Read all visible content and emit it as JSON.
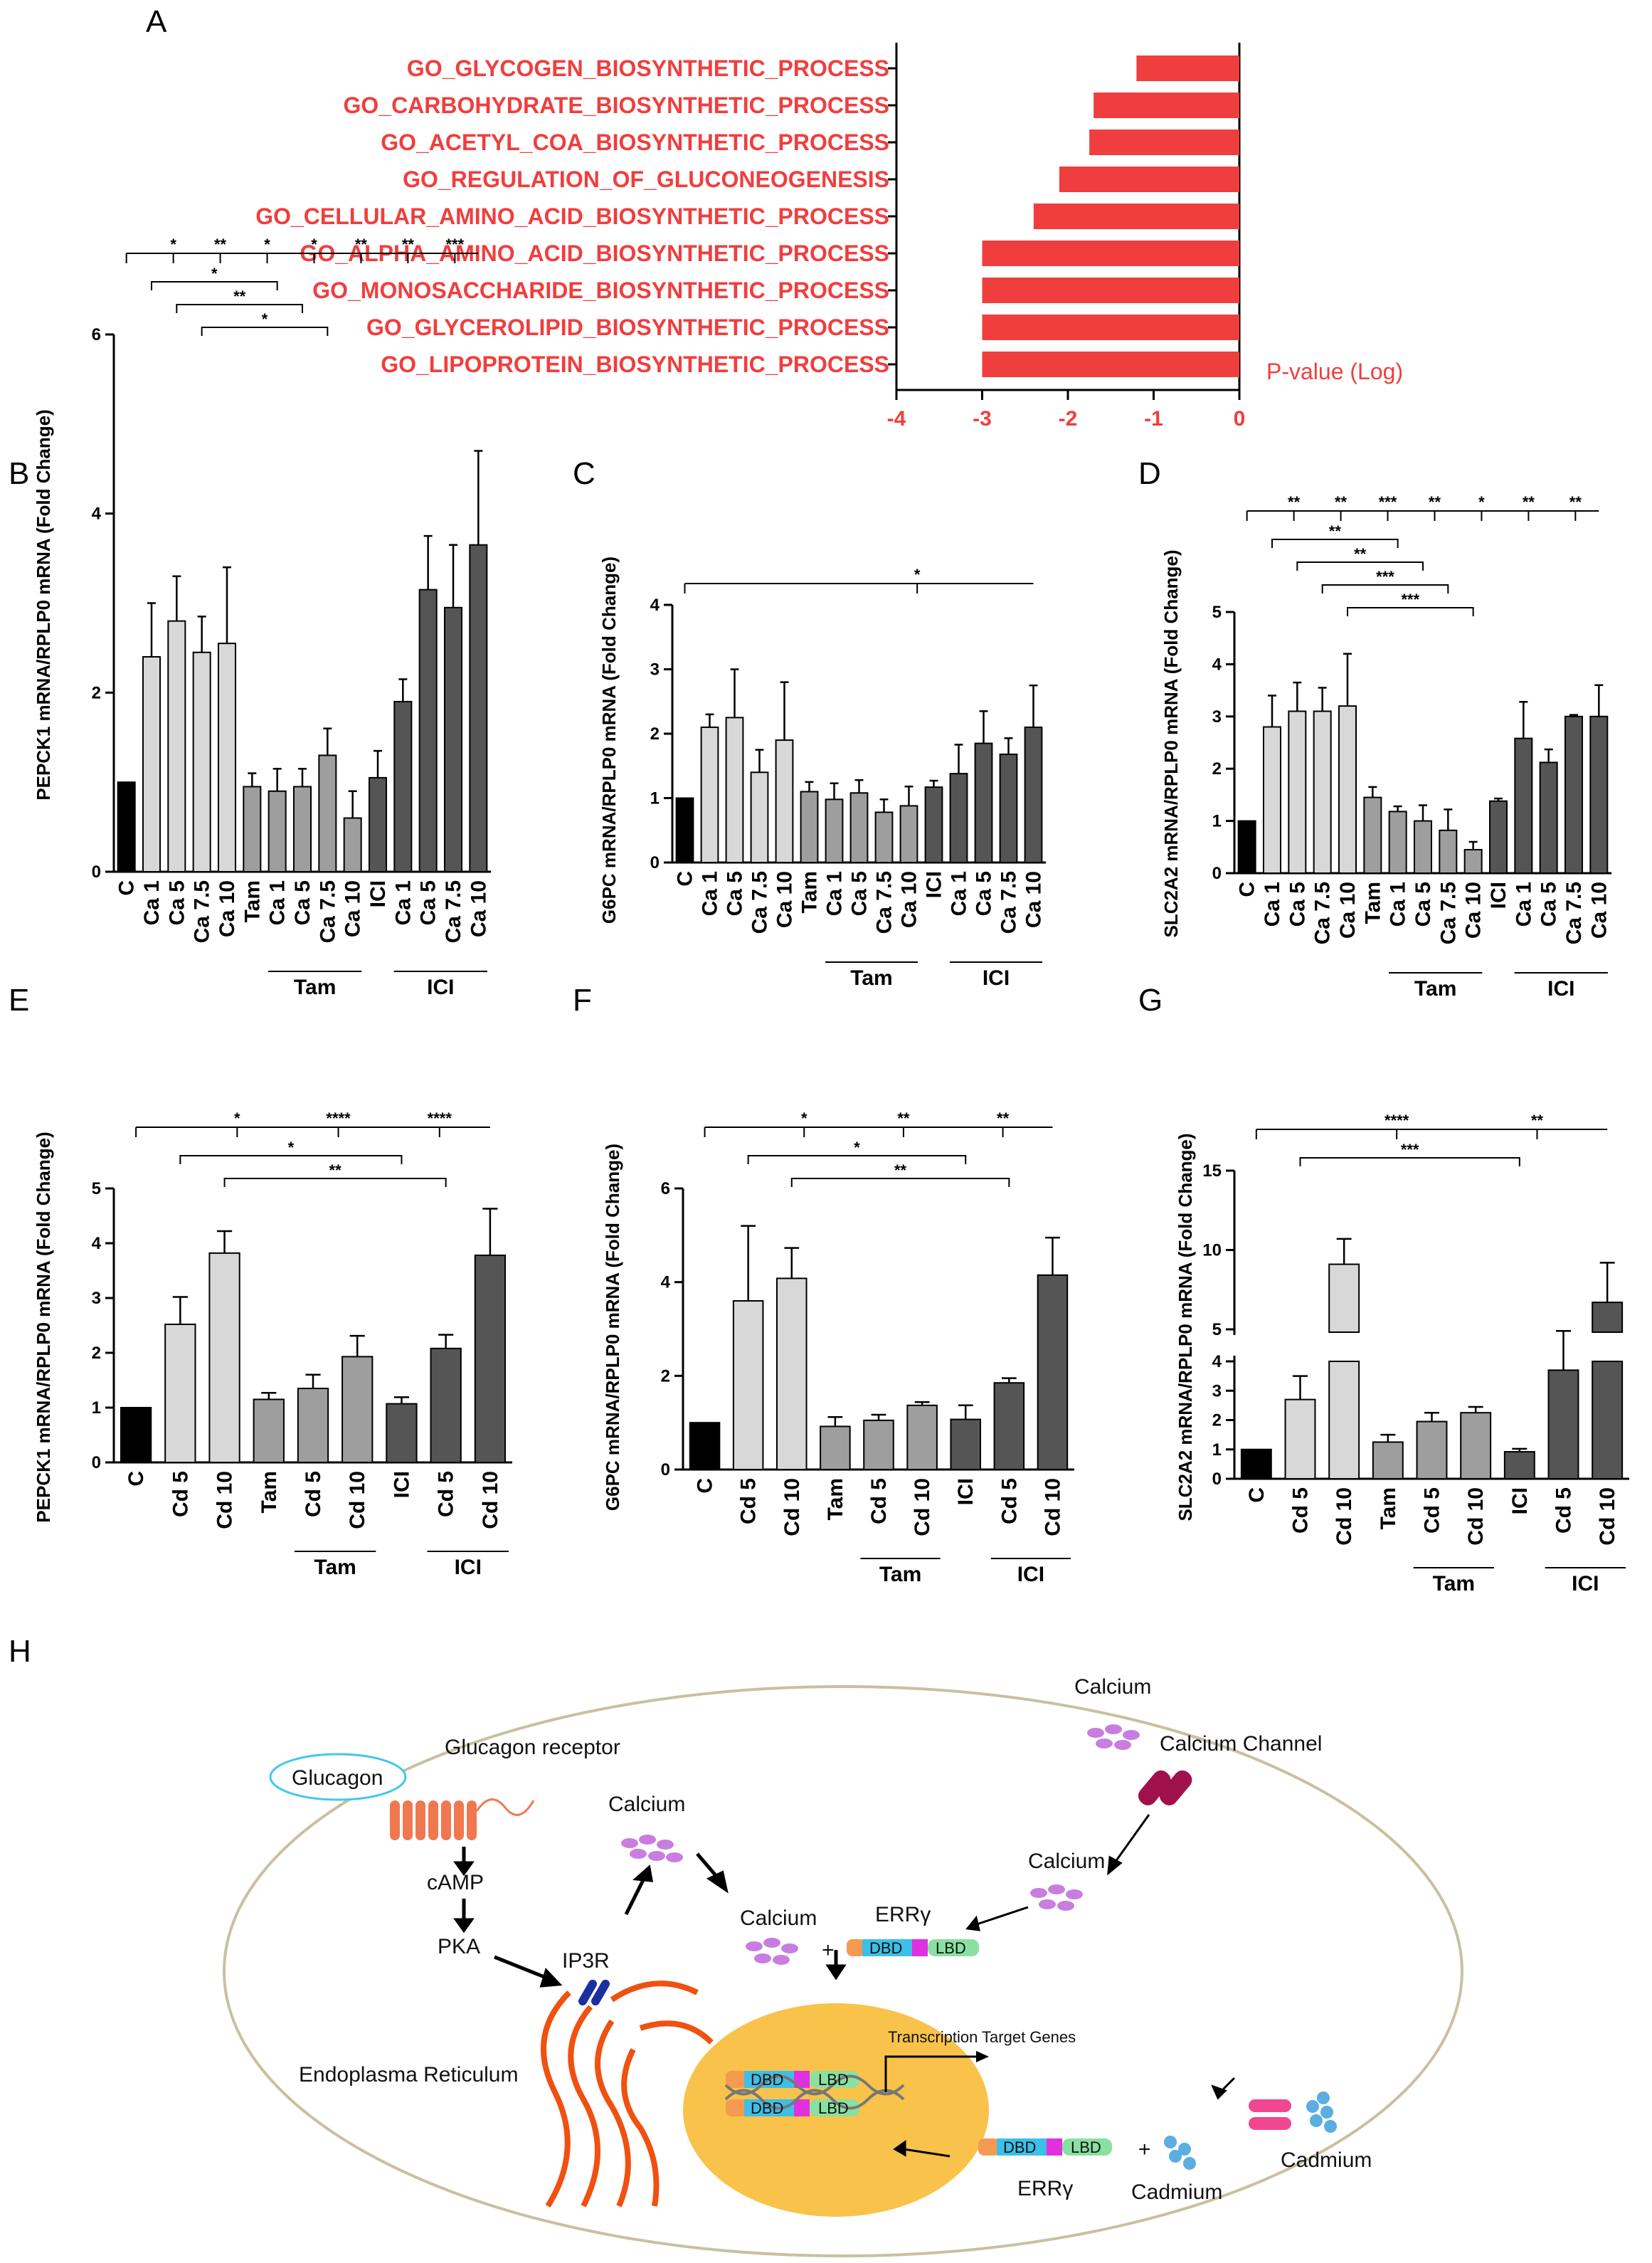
{
  "colors": {
    "red": "#f03e3e",
    "black": "#000000",
    "light": "#d8d8d8",
    "mid": "#9e9e9e",
    "dark": "#555555"
  },
  "chart_data": [
    {
      "panel": "A",
      "type": "bar",
      "orientation": "horizontal",
      "categories": [
        "GO_GLYCOGEN_BIOSYNTHETIC_PROCESS",
        "GO_CARBOHYDRATE_BIOSYNTHETIC_PROCESS",
        "GO_ACETYL_COA_BIOSYNTHETIC_PROCESS",
        "GO_REGULATION_OF_GLUCONEOGENESIS",
        "GO_CELLULAR_AMINO_ACID_BIOSYNTHETIC_PROCESS",
        "GO_ALPHA_AMINO_ACID_BIOSYNTHETIC_PROCESS",
        "GO_MONOSACCHARIDE_BIOSYNTHETIC_PROCESS",
        "GO_GLYCEROLIPID_BIOSYNTHETIC_PROCESS",
        "GO_LIPOPROTEIN_BIOSYNTHETIC_PROCESS"
      ],
      "values": [
        -1.2,
        -1.7,
        -1.75,
        -2.1,
        -2.4,
        -3.0,
        -3.0,
        -3.0,
        -3.0
      ],
      "xlabel": "P-value (Log)",
      "xlim": [
        -4,
        0
      ],
      "xticks": [
        "-4",
        "-3",
        "-2",
        "-1",
        "0"
      ]
    },
    {
      "panel": "B",
      "type": "bar",
      "ylabel": "PEPCK1 mRNA/RPLP0 mRNA (Fold Change)",
      "ylim": [
        0,
        6
      ],
      "yticks": [
        "0",
        "2",
        "4",
        "6"
      ],
      "categories": [
        "C",
        "Ca 1",
        "Ca 5",
        "Ca 7.5",
        "Ca 10",
        "Tam",
        "Ca 1",
        "Ca 5",
        "Ca 7.5",
        "Ca 10",
        "ICI",
        "Ca 1",
        "Ca 5",
        "Ca 7.5",
        "Ca 10"
      ],
      "values": [
        1.0,
        2.4,
        2.8,
        2.45,
        2.55,
        0.95,
        0.9,
        0.95,
        1.3,
        0.6,
        1.05,
        1.9,
        3.15,
        2.95,
        3.65
      ],
      "errors": [
        0,
        0.6,
        0.5,
        0.4,
        0.85,
        0.15,
        0.25,
        0.2,
        0.3,
        0.3,
        0.3,
        0.25,
        0.6,
        0.7,
        1.05
      ],
      "groups": [
        {
          "label": "Tam",
          "from": 6,
          "to": 9
        },
        {
          "label": "ICI",
          "from": 11,
          "to": 14
        }
      ],
      "sig": {
        "top": [
          "*",
          "**",
          "*",
          "*",
          "**",
          "**",
          "***"
        ],
        "brackets": [
          "*",
          "**",
          "*"
        ]
      }
    },
    {
      "panel": "C",
      "type": "bar",
      "ylabel": "G6PC mRNA/RPLP0 mRNA (Fold Change)",
      "ylim": [
        0,
        4
      ],
      "yticks": [
        "0",
        "1",
        "2",
        "3",
        "4"
      ],
      "categories": [
        "C",
        "Ca 1",
        "Ca 5",
        "Ca 7.5",
        "Ca 10",
        "Tam",
        "Ca 1",
        "Ca 5",
        "Ca 7.5",
        "Ca 10",
        "ICI",
        "Ca 1",
        "Ca 5",
        "Ca 7.5",
        "Ca 10"
      ],
      "values": [
        1.0,
        2.1,
        2.25,
        1.4,
        1.9,
        1.1,
        0.98,
        1.08,
        0.78,
        0.88,
        1.17,
        1.38,
        1.85,
        1.68,
        2.1
      ],
      "errors": [
        0,
        0.2,
        0.75,
        0.35,
        0.9,
        0.15,
        0.25,
        0.2,
        0.2,
        0.3,
        0.1,
        0.45,
        0.5,
        0.25,
        0.65
      ],
      "groups": [
        {
          "label": "Tam",
          "from": 6,
          "to": 9
        },
        {
          "label": "ICI",
          "from": 11,
          "to": 14
        }
      ],
      "sig": {
        "top": [
          "*"
        ],
        "brackets": []
      }
    },
    {
      "panel": "D",
      "type": "bar",
      "ylabel": "SLC2A2 mRNA/RPLP0 mRNA (Fold Change)",
      "ylim": [
        0,
        5
      ],
      "yticks": [
        "0",
        "1",
        "2",
        "3",
        "4",
        "5"
      ],
      "categories": [
        "C",
        "Ca 1",
        "Ca 5",
        "Ca 7.5",
        "Ca 10",
        "Tam",
        "Ca 1",
        "Ca 5",
        "Ca 7.5",
        "Ca 10",
        "ICI",
        "Ca 1",
        "Ca 5",
        "Ca 7.5",
        "Ca 10"
      ],
      "values": [
        1.0,
        2.8,
        3.1,
        3.1,
        3.2,
        1.45,
        1.18,
        1.0,
        0.82,
        0.45,
        1.38,
        2.58,
        2.12,
        3.0,
        3.0
      ],
      "errors": [
        0,
        0.6,
        0.55,
        0.45,
        1.0,
        0.2,
        0.1,
        0.3,
        0.4,
        0.15,
        0.05,
        0.7,
        0.25,
        0.03,
        0.6
      ],
      "groups": [
        {
          "label": "Tam",
          "from": 6,
          "to": 9
        },
        {
          "label": "ICI",
          "from": 11,
          "to": 14
        }
      ],
      "sig": {
        "top": [
          "**",
          "**",
          "***",
          "**",
          "*",
          "**",
          "**"
        ],
        "brackets": [
          "**",
          "**",
          "***",
          "***"
        ]
      }
    },
    {
      "panel": "E",
      "type": "bar",
      "ylabel": "PEPCK1 mRNA/RPLP0 mRNA (Fold Change)",
      "ylim": [
        0,
        5
      ],
      "yticks": [
        "0",
        "1",
        "2",
        "3",
        "4",
        "5"
      ],
      "categories": [
        "C",
        "Cd 5",
        "Cd 10",
        "Tam",
        "Cd 5",
        "Cd 10",
        "ICI",
        "Cd 5",
        "Cd 10"
      ],
      "values": [
        1.0,
        2.52,
        3.82,
        1.15,
        1.35,
        1.93,
        1.07,
        2.08,
        3.78
      ],
      "errors": [
        0,
        0.5,
        0.4,
        0.12,
        0.25,
        0.38,
        0.12,
        0.25,
        0.85
      ],
      "groups": [
        {
          "label": "Tam",
          "from": 4,
          "to": 5
        },
        {
          "label": "ICI",
          "from": 7,
          "to": 8
        }
      ],
      "sig": {
        "top": [
          "*",
          "****",
          "****"
        ],
        "brackets": [
          "*",
          "**"
        ]
      }
    },
    {
      "panel": "F",
      "type": "bar",
      "ylabel": "G6PC mRNA/RPLP0 mRNA (Fold Change)",
      "ylim": [
        0,
        6
      ],
      "yticks": [
        "0",
        "2",
        "4",
        "6"
      ],
      "categories": [
        "C",
        "Cd 5",
        "Cd 10",
        "Tam",
        "Cd 5",
        "Cd 10",
        "ICI",
        "Cd 5",
        "Cd 10"
      ],
      "values": [
        1.0,
        3.6,
        4.08,
        0.92,
        1.05,
        1.37,
        1.07,
        1.85,
        4.15
      ],
      "errors": [
        0,
        1.6,
        0.65,
        0.2,
        0.12,
        0.07,
        0.3,
        0.1,
        0.8
      ],
      "groups": [
        {
          "label": "Tam",
          "from": 4,
          "to": 5
        },
        {
          "label": "ICI",
          "from": 7,
          "to": 8
        }
      ],
      "sig": {
        "top": [
          "*",
          "**",
          "**"
        ],
        "brackets": [
          "*",
          "**"
        ]
      }
    },
    {
      "panel": "G",
      "type": "bar",
      "ylabel": "SLC2A2 mRNA/RPLP0 mRNA (Fold Change)",
      "ylim": [
        0,
        15
      ],
      "axis_break": [
        4,
        5
      ],
      "yticks": [
        "0",
        "1",
        "2",
        "3",
        "4",
        "5",
        "10",
        "15"
      ],
      "categories": [
        "C",
        "Cd 5",
        "Cd 10",
        "Tam",
        "Cd 5",
        "Cd 10",
        "ICI",
        "Cd 5",
        "Cd 10"
      ],
      "values": [
        1.0,
        2.7,
        9.1,
        1.25,
        1.95,
        2.25,
        0.92,
        3.7,
        6.7
      ],
      "errors": [
        0,
        0.8,
        1.6,
        0.25,
        0.3,
        0.2,
        0.1,
        1.2,
        2.5
      ],
      "groups": [
        {
          "label": "Tam",
          "from": 4,
          "to": 5
        },
        {
          "label": "ICI",
          "from": 7,
          "to": 8
        }
      ],
      "sig": {
        "top": [
          "****",
          "**"
        ],
        "brackets": [
          "***"
        ]
      }
    }
  ],
  "panel_letters": [
    "A",
    "B",
    "C",
    "D",
    "E",
    "F",
    "G",
    "H"
  ],
  "diagram": {
    "glucagon": "Glucagon",
    "glucagon_receptor": "Glucagon receptor",
    "camp": "cAMP",
    "pka": "PKA",
    "ip3r": "IP3R",
    "er": "Endoplasma Reticulum",
    "calcium_out": "Calcium",
    "calcium_channel": "Calcium Channel",
    "calcium_cyto": "Calcium",
    "calcium_er": "Calcium",
    "calcium_bind": "Calcium",
    "plus1": "+",
    "plus2": "+",
    "err1": "ERRγ",
    "err2": "ERRγ",
    "dbd": "DBD",
    "lbd": "LBD",
    "transcription": "Transcription Target Genes",
    "cadmium_out": "Cadmium",
    "cadmium_in": "Cadmium"
  }
}
